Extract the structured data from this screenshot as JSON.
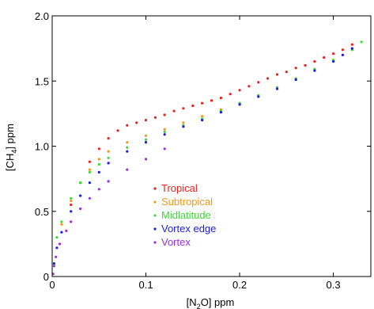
{
  "chart_data": {
    "type": "scatter",
    "title": "",
    "xlabel": {
      "prefix": "[N",
      "sub": "2",
      "suffix": "O] ppm"
    },
    "ylabel": {
      "prefix": "[CH",
      "sub": "4",
      "suffix": "] ppm"
    },
    "xlim": [
      0,
      0.34
    ],
    "ylim": [
      0,
      2.0
    ],
    "xticks": [
      0,
      0.1,
      0.2,
      0.3
    ],
    "xtick_labels": [
      "0",
      "0.1",
      "0.2",
      "0.3"
    ],
    "yticks": [
      0,
      0.5,
      1.0,
      1.5,
      2.0
    ],
    "ytick_labels": [
      "0",
      "0.5",
      "1.0",
      "1.5",
      "2.0"
    ],
    "grid": false,
    "legend_position": "center",
    "series": [
      {
        "name": "Tropical",
        "color": "#e8221c",
        "points": [
          [
            0.02,
            0.55
          ],
          [
            0.03,
            0.72
          ],
          [
            0.04,
            0.88
          ],
          [
            0.05,
            0.98
          ],
          [
            0.06,
            1.06
          ],
          [
            0.07,
            1.12
          ],
          [
            0.08,
            1.16
          ],
          [
            0.09,
            1.18
          ],
          [
            0.1,
            1.2
          ],
          [
            0.11,
            1.22
          ],
          [
            0.12,
            1.24
          ],
          [
            0.13,
            1.27
          ],
          [
            0.14,
            1.29
          ],
          [
            0.15,
            1.31
          ],
          [
            0.16,
            1.33
          ],
          [
            0.17,
            1.35
          ],
          [
            0.18,
            1.37
          ],
          [
            0.19,
            1.4
          ],
          [
            0.2,
            1.43
          ],
          [
            0.21,
            1.46
          ],
          [
            0.22,
            1.49
          ],
          [
            0.23,
            1.52
          ],
          [
            0.24,
            1.55
          ],
          [
            0.25,
            1.57
          ],
          [
            0.26,
            1.6
          ],
          [
            0.27,
            1.62
          ],
          [
            0.28,
            1.65
          ],
          [
            0.29,
            1.68
          ],
          [
            0.3,
            1.71
          ],
          [
            0.31,
            1.74
          ],
          [
            0.32,
            1.78
          ]
        ]
      },
      {
        "name": "Subtropical",
        "color": "#f39a1b",
        "points": [
          [
            0.01,
            0.4
          ],
          [
            0.02,
            0.58
          ],
          [
            0.03,
            0.72
          ],
          [
            0.04,
            0.82
          ],
          [
            0.05,
            0.9
          ],
          [
            0.06,
            0.96
          ],
          [
            0.08,
            1.03
          ],
          [
            0.1,
            1.08
          ],
          [
            0.12,
            1.13
          ],
          [
            0.14,
            1.18
          ],
          [
            0.16,
            1.23
          ],
          [
            0.18,
            1.28
          ],
          [
            0.2,
            1.33
          ],
          [
            0.22,
            1.39
          ],
          [
            0.24,
            1.45
          ],
          [
            0.26,
            1.52
          ],
          [
            0.28,
            1.59
          ],
          [
            0.3,
            1.66
          ],
          [
            0.32,
            1.74
          ]
        ]
      },
      {
        "name": "Midlatitude",
        "color": "#3fd93a",
        "points": [
          [
            0.005,
            0.3
          ],
          [
            0.01,
            0.42
          ],
          [
            0.02,
            0.6
          ],
          [
            0.03,
            0.72
          ],
          [
            0.04,
            0.8
          ],
          [
            0.05,
            0.86
          ],
          [
            0.06,
            0.91
          ],
          [
            0.08,
            0.99
          ],
          [
            0.1,
            1.05
          ],
          [
            0.12,
            1.11
          ],
          [
            0.14,
            1.16
          ],
          [
            0.16,
            1.21
          ],
          [
            0.18,
            1.27
          ],
          [
            0.2,
            1.33
          ],
          [
            0.22,
            1.39
          ],
          [
            0.24,
            1.45
          ],
          [
            0.26,
            1.52
          ],
          [
            0.28,
            1.59
          ],
          [
            0.3,
            1.66
          ],
          [
            0.32,
            1.74
          ],
          [
            0.33,
            1.8
          ]
        ]
      },
      {
        "name": "Vortex edge",
        "color": "#1c1ce0",
        "points": [
          [
            0.002,
            0.1
          ],
          [
            0.005,
            0.22
          ],
          [
            0.01,
            0.34
          ],
          [
            0.02,
            0.5
          ],
          [
            0.03,
            0.62
          ],
          [
            0.04,
            0.72
          ],
          [
            0.05,
            0.8
          ],
          [
            0.06,
            0.87
          ],
          [
            0.08,
            0.96
          ],
          [
            0.1,
            1.03
          ],
          [
            0.12,
            1.09
          ],
          [
            0.14,
            1.15
          ],
          [
            0.16,
            1.2
          ],
          [
            0.18,
            1.26
          ],
          [
            0.2,
            1.32
          ],
          [
            0.22,
            1.38
          ],
          [
            0.24,
            1.44
          ],
          [
            0.26,
            1.51
          ],
          [
            0.28,
            1.58
          ],
          [
            0.3,
            1.65
          ],
          [
            0.31,
            1.7
          ],
          [
            0.32,
            1.75
          ]
        ]
      },
      {
        "name": "Vortex",
        "color": "#9a2fd6",
        "points": [
          [
            0.001,
            0.02
          ],
          [
            0.002,
            0.08
          ],
          [
            0.004,
            0.15
          ],
          [
            0.008,
            0.25
          ],
          [
            0.015,
            0.35
          ],
          [
            0.02,
            0.42
          ],
          [
            0.03,
            0.52
          ],
          [
            0.04,
            0.6
          ],
          [
            0.05,
            0.67
          ],
          [
            0.06,
            0.73
          ],
          [
            0.08,
            0.82
          ],
          [
            0.1,
            0.9
          ],
          [
            0.12,
            0.98
          ]
        ]
      }
    ]
  }
}
